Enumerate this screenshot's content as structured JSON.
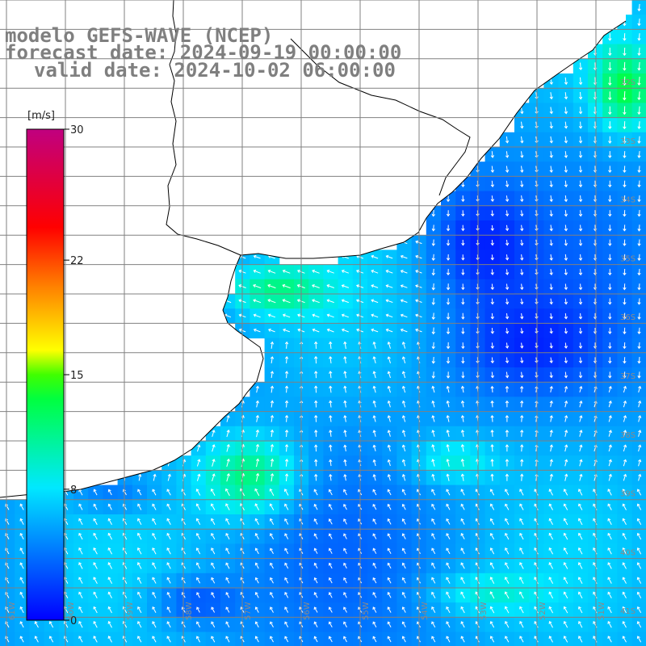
{
  "title": {
    "model": "modelo GEFS-WAVE (NCEP)",
    "forecast": "forecast date: 2024-09-19 00:00:00",
    "valid": "valid date: 2024-10-02 06:00:00"
  },
  "colorbar": {
    "unit": "[m/s]",
    "ticks": [
      "30",
      "22",
      "15",
      "8",
      "0"
    ],
    "tick_values": [
      30,
      22,
      15,
      8,
      0
    ],
    "range": [
      0,
      30
    ],
    "stops": [
      "#0000ff",
      "#00e8ff",
      "#00ff40",
      "#40ff00",
      "#ffff00",
      "#ff8000",
      "#ff0000",
      "#c00080"
    ]
  },
  "grid": {
    "lat_labels": [
      "32S",
      "33S",
      "34S",
      "35S",
      "36S",
      "37S",
      "38S",
      "39S",
      "40S",
      "41S"
    ],
    "lon_labels": [
      "61W",
      "60W",
      "59W",
      "58W",
      "57W",
      "56W",
      "55W",
      "54W",
      "53W",
      "52W",
      "51W"
    ]
  },
  "legend_colors": {
    "land": "#ffffff",
    "coastline": "#000000",
    "gridline": "#808080",
    "arrows": "#ffffff"
  }
}
